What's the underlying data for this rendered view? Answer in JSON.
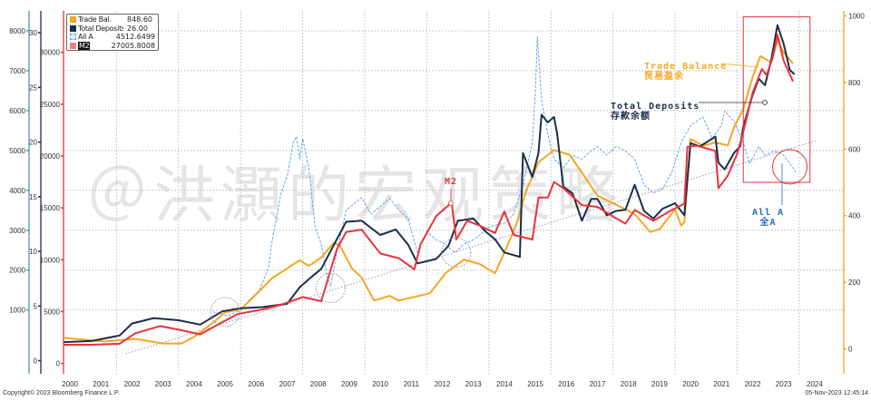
{
  "chart_data": {
    "type": "line",
    "title": "",
    "xlabel": "",
    "x_ticks": [
      "2000",
      "2001",
      "2002",
      "2003",
      "2004",
      "2005",
      "2006",
      "2007",
      "2008",
      "2009",
      "2010",
      "2011",
      "2012",
      "2013",
      "2014",
      "2015",
      "2016",
      "2017",
      "2018",
      "2019",
      "2020",
      "2021",
      "2022",
      "2023",
      "2024"
    ],
    "xlim": [
      2000,
      2024.6
    ],
    "grid": true,
    "legend_position": "top-left",
    "axes": {
      "all_a": {
        "side": "left-outer",
        "ylim": [
          -600,
          8500
        ],
        "ticks": [
          1000,
          2000,
          3000,
          4000,
          5000,
          6000,
          7000,
          8000
        ],
        "color": "#4a90e2"
      },
      "deposits": {
        "side": "left-middle",
        "ylim": [
          -1.2,
          32
        ],
        "ticks": [
          0,
          5,
          10,
          15,
          20,
          25,
          30
        ],
        "color": "#1c2e4a"
      },
      "m2": {
        "side": "left-inner",
        "ylim": [
          -1000,
          34000
        ],
        "ticks": [
          0,
          5000,
          10000,
          15000,
          20000,
          25000,
          30000
        ],
        "color": "#e8333c"
      },
      "trade": {
        "side": "right",
        "ylim": [
          -75,
          1015
        ],
        "ticks": [
          0,
          200,
          400,
          600,
          800,
          1000
        ],
        "color": "#f5a623"
      }
    },
    "series": [
      {
        "name": "Trade Bal.",
        "axis": "trade",
        "color": "#f5a623",
        "last": "848.60",
        "points": [
          [
            2000.3,
            33
          ],
          [
            2001.6,
            22
          ],
          [
            2002.6,
            30
          ],
          [
            2003.5,
            16
          ],
          [
            2004.1,
            16
          ],
          [
            2004.5,
            36
          ],
          [
            2005.2,
            85
          ],
          [
            2005.5,
            110
          ],
          [
            2006.0,
            118
          ],
          [
            2006.6,
            173
          ],
          [
            2007.0,
            211
          ],
          [
            2007.9,
            266
          ],
          [
            2008.2,
            249
          ],
          [
            2008.6,
            274
          ],
          [
            2009.0,
            318
          ],
          [
            2009.2,
            310
          ],
          [
            2009.6,
            240
          ],
          [
            2009.9,
            214
          ],
          [
            2010.3,
            145
          ],
          [
            2010.8,
            159
          ],
          [
            2011.1,
            145
          ],
          [
            2011.6,
            156
          ],
          [
            2012.1,
            167
          ],
          [
            2012.6,
            227
          ],
          [
            2013.2,
            268
          ],
          [
            2013.7,
            255
          ],
          [
            2014.2,
            227
          ],
          [
            2014.6,
            310
          ],
          [
            2014.9,
            378
          ],
          [
            2015.2,
            474
          ],
          [
            2015.6,
            560
          ],
          [
            2016.1,
            597
          ],
          [
            2016.6,
            583
          ],
          [
            2017.0,
            529
          ],
          [
            2017.5,
            460
          ],
          [
            2018.1,
            433
          ],
          [
            2018.7,
            405
          ],
          [
            2019.2,
            351
          ],
          [
            2019.5,
            359
          ],
          [
            2020.0,
            419
          ],
          [
            2020.2,
            370
          ],
          [
            2020.3,
            380
          ],
          [
            2020.5,
            630
          ],
          [
            2020.9,
            610
          ],
          [
            2021.3,
            620
          ],
          [
            2021.7,
            611
          ],
          [
            2021.9,
            665
          ],
          [
            2022.2,
            720
          ],
          [
            2022.5,
            816
          ],
          [
            2022.75,
            879
          ],
          [
            2022.9,
            871
          ],
          [
            2023.1,
            860
          ],
          [
            2023.3,
            926
          ],
          [
            2023.5,
            890
          ],
          [
            2023.8,
            857
          ]
        ]
      },
      {
        "name": "Total Deposits",
        "axis": "deposits",
        "color": "#1c2e4a",
        "last": "26.00",
        "points": [
          [
            2000.3,
            1.7
          ],
          [
            2001.2,
            1.8
          ],
          [
            2002.1,
            2.3
          ],
          [
            2002.5,
            3.4
          ],
          [
            2003.2,
            3.9
          ],
          [
            2004.0,
            3.7
          ],
          [
            2004.7,
            3.3
          ],
          [
            2005.4,
            4.5
          ],
          [
            2006.0,
            4.8
          ],
          [
            2006.7,
            4.9
          ],
          [
            2007.5,
            5.2
          ],
          [
            2007.9,
            6.7
          ],
          [
            2008.3,
            7.7
          ],
          [
            2008.6,
            8.4
          ],
          [
            2009.1,
            11.1
          ],
          [
            2009.4,
            12.7
          ],
          [
            2009.9,
            12.8
          ],
          [
            2010.5,
            11.5
          ],
          [
            2011.0,
            12
          ],
          [
            2011.4,
            10.6
          ],
          [
            2011.7,
            8.9
          ],
          [
            2012.3,
            9.3
          ],
          [
            2012.7,
            10.5
          ],
          [
            2013.0,
            12.8
          ],
          [
            2013.5,
            13
          ],
          [
            2013.9,
            11.8
          ],
          [
            2014.2,
            11.1
          ],
          [
            2014.5,
            9.9
          ],
          [
            2015.0,
            9.5
          ],
          [
            2015.1,
            19
          ],
          [
            2015.4,
            16.8
          ],
          [
            2015.6,
            19
          ],
          [
            2015.7,
            22.5
          ],
          [
            2015.9,
            21.8
          ],
          [
            2016.1,
            22.3
          ],
          [
            2016.2,
            20.8
          ],
          [
            2016.4,
            15.9
          ],
          [
            2016.7,
            15.3
          ],
          [
            2017.0,
            12.8
          ],
          [
            2017.3,
            14.8
          ],
          [
            2017.5,
            14.8
          ],
          [
            2017.8,
            13.3
          ],
          [
            2018.1,
            13.7
          ],
          [
            2018.4,
            13.8
          ],
          [
            2018.7,
            16.1
          ],
          [
            2019.0,
            13.7
          ],
          [
            2019.3,
            13
          ],
          [
            2019.6,
            13.9
          ],
          [
            2020.0,
            14.4
          ],
          [
            2020.3,
            13.3
          ],
          [
            2020.5,
            19.9
          ],
          [
            2020.8,
            19.6
          ],
          [
            2021.3,
            20.5
          ],
          [
            2021.4,
            18.1
          ],
          [
            2021.6,
            17.5
          ],
          [
            2021.9,
            19
          ],
          [
            2022.1,
            19.6
          ],
          [
            2022.2,
            21.4
          ],
          [
            2022.5,
            24.3
          ],
          [
            2022.7,
            25.8
          ],
          [
            2022.9,
            25.2
          ],
          [
            2023.1,
            27.5
          ],
          [
            2023.3,
            30.7
          ],
          [
            2023.5,
            29
          ],
          [
            2023.7,
            26.6
          ],
          [
            2023.85,
            26.2
          ]
        ]
      },
      {
        "name": "All A",
        "axis": "all_a",
        "color": "#5b9be8",
        "last": "4512.6499",
        "dashed": true,
        "points": [
          [
            2005.1,
            955
          ],
          [
            2005.6,
            850
          ],
          [
            2006.0,
            1000
          ],
          [
            2006.3,
            1270
          ],
          [
            2006.6,
            1490
          ],
          [
            2006.9,
            2060
          ],
          [
            2007.0,
            2650
          ],
          [
            2007.3,
            3930
          ],
          [
            2007.5,
            4350
          ],
          [
            2007.7,
            5200
          ],
          [
            2007.8,
            5350
          ],
          [
            2007.9,
            4780
          ],
          [
            2008.0,
            5300
          ],
          [
            2008.2,
            4560
          ],
          [
            2008.4,
            3080
          ],
          [
            2008.6,
            2650
          ],
          [
            2008.8,
            1800
          ],
          [
            2008.9,
            1600
          ],
          [
            2009.1,
            2440
          ],
          [
            2009.4,
            3500
          ],
          [
            2009.7,
            3700
          ],
          [
            2009.9,
            3820
          ],
          [
            2010.2,
            3400
          ],
          [
            2010.5,
            3600
          ],
          [
            2010.8,
            3800
          ],
          [
            2011.1,
            3500
          ],
          [
            2011.4,
            3290
          ],
          [
            2011.7,
            2440
          ],
          [
            2012.0,
            2970
          ],
          [
            2012.3,
            2760
          ],
          [
            2012.6,
            2650
          ],
          [
            2012.9,
            2440
          ],
          [
            2013.2,
            2650
          ],
          [
            2013.5,
            2760
          ],
          [
            2013.7,
            2870
          ],
          [
            2014.0,
            3080
          ],
          [
            2014.5,
            3180
          ],
          [
            2014.8,
            3400
          ],
          [
            2015.1,
            4140
          ],
          [
            2015.4,
            5200
          ],
          [
            2015.5,
            6480
          ],
          [
            2015.56,
            7850
          ],
          [
            2015.7,
            6260
          ],
          [
            2015.9,
            5410
          ],
          [
            2016.1,
            4780
          ],
          [
            2016.4,
            4560
          ],
          [
            2016.7,
            4880
          ],
          [
            2017.0,
            4780
          ],
          [
            2017.3,
            4990
          ],
          [
            2017.5,
            5100
          ],
          [
            2017.8,
            4880
          ],
          [
            2018.1,
            5100
          ],
          [
            2018.4,
            4990
          ],
          [
            2018.7,
            4780
          ],
          [
            2019.0,
            4140
          ],
          [
            2019.3,
            3930
          ],
          [
            2019.6,
            4030
          ],
          [
            2019.9,
            4460
          ],
          [
            2020.2,
            5200
          ],
          [
            2020.5,
            5630
          ],
          [
            2020.9,
            5840
          ],
          [
            2021.2,
            5300
          ],
          [
            2021.5,
            5630
          ],
          [
            2021.6,
            5990
          ],
          [
            2021.9,
            5730
          ],
          [
            2022.2,
            5200
          ],
          [
            2022.4,
            4670
          ],
          [
            2022.7,
            5100
          ],
          [
            2022.9,
            4880
          ],
          [
            2023.2,
            4990
          ],
          [
            2023.5,
            4880
          ],
          [
            2023.7,
            4670
          ],
          [
            2023.9,
            4460
          ]
        ]
      },
      {
        "name": "M2",
        "axis": "m2",
        "color": "#e8333c",
        "last": "27005.8008",
        "points": [
          [
            2000.3,
            1800
          ],
          [
            2001.2,
            1800
          ],
          [
            2002.1,
            1900
          ],
          [
            2002.6,
            2900
          ],
          [
            2003.4,
            3600
          ],
          [
            2004.1,
            3200
          ],
          [
            2004.7,
            2800
          ],
          [
            2005.3,
            3800
          ],
          [
            2005.9,
            4760
          ],
          [
            2006.7,
            5200
          ],
          [
            2007.3,
            5660
          ],
          [
            2008.0,
            6400
          ],
          [
            2008.6,
            6000
          ],
          [
            2009.1,
            11000
          ],
          [
            2009.4,
            12670
          ],
          [
            2009.9,
            12900
          ],
          [
            2010.5,
            10600
          ],
          [
            2011.1,
            10150
          ],
          [
            2011.6,
            9070
          ],
          [
            2011.8,
            11500
          ],
          [
            2012.3,
            14200
          ],
          [
            2012.8,
            15500
          ],
          [
            2012.95,
            11950
          ],
          [
            2013.3,
            13750
          ],
          [
            2013.7,
            13300
          ],
          [
            2014.2,
            12580
          ],
          [
            2014.5,
            14650
          ],
          [
            2014.8,
            12400
          ],
          [
            2015.4,
            11950
          ],
          [
            2015.6,
            16000
          ],
          [
            2015.9,
            16000
          ],
          [
            2016.1,
            17500
          ],
          [
            2016.4,
            16900
          ],
          [
            2017.0,
            15270
          ],
          [
            2017.5,
            15100
          ],
          [
            2018.1,
            14000
          ],
          [
            2018.4,
            13480
          ],
          [
            2018.7,
            14800
          ],
          [
            2019.3,
            13750
          ],
          [
            2019.9,
            14800
          ],
          [
            2020.3,
            15400
          ],
          [
            2020.4,
            20900
          ],
          [
            2020.7,
            21000
          ],
          [
            2021.3,
            20500
          ],
          [
            2021.4,
            16900
          ],
          [
            2021.7,
            18100
          ],
          [
            2022.0,
            20200
          ],
          [
            2022.2,
            22300
          ],
          [
            2022.5,
            26100
          ],
          [
            2022.8,
            28400
          ],
          [
            2022.95,
            27800
          ],
          [
            2023.15,
            29500
          ],
          [
            2023.3,
            31700
          ],
          [
            2023.5,
            29200
          ],
          [
            2023.8,
            27200
          ]
        ]
      }
    ],
    "trendline": {
      "axis": "all_a",
      "from": [
        2002.3,
        -100
      ],
      "to": [
        2024.6,
        5260
      ]
    },
    "annotations": {
      "trade_balance": {
        "en": "Trade Balance",
        "zh": "贸易盈余"
      },
      "total_deposits": {
        "en": "Total Deposits",
        "zh": "存款余额"
      },
      "m2": "M2",
      "all_a": {
        "en": "All A",
        "zh": "全A"
      }
    },
    "highlight_circles": [
      [
        2005.5,
        950
      ],
      [
        2008.9,
        1550
      ],
      [
        2012.95,
        2440
      ],
      [
        2023.7,
        4590
      ]
    ],
    "highlight_box": {
      "from": [
        2022.2,
        4200
      ],
      "to": [
        2024.35,
        8350
      ]
    }
  },
  "watermark": "@洪灝的宏观策略",
  "footer": {
    "copyright": "Copyright© 2023 Bloomberg Finance L.P.",
    "timestamp": "05-Nov-2023 12:45:14"
  }
}
